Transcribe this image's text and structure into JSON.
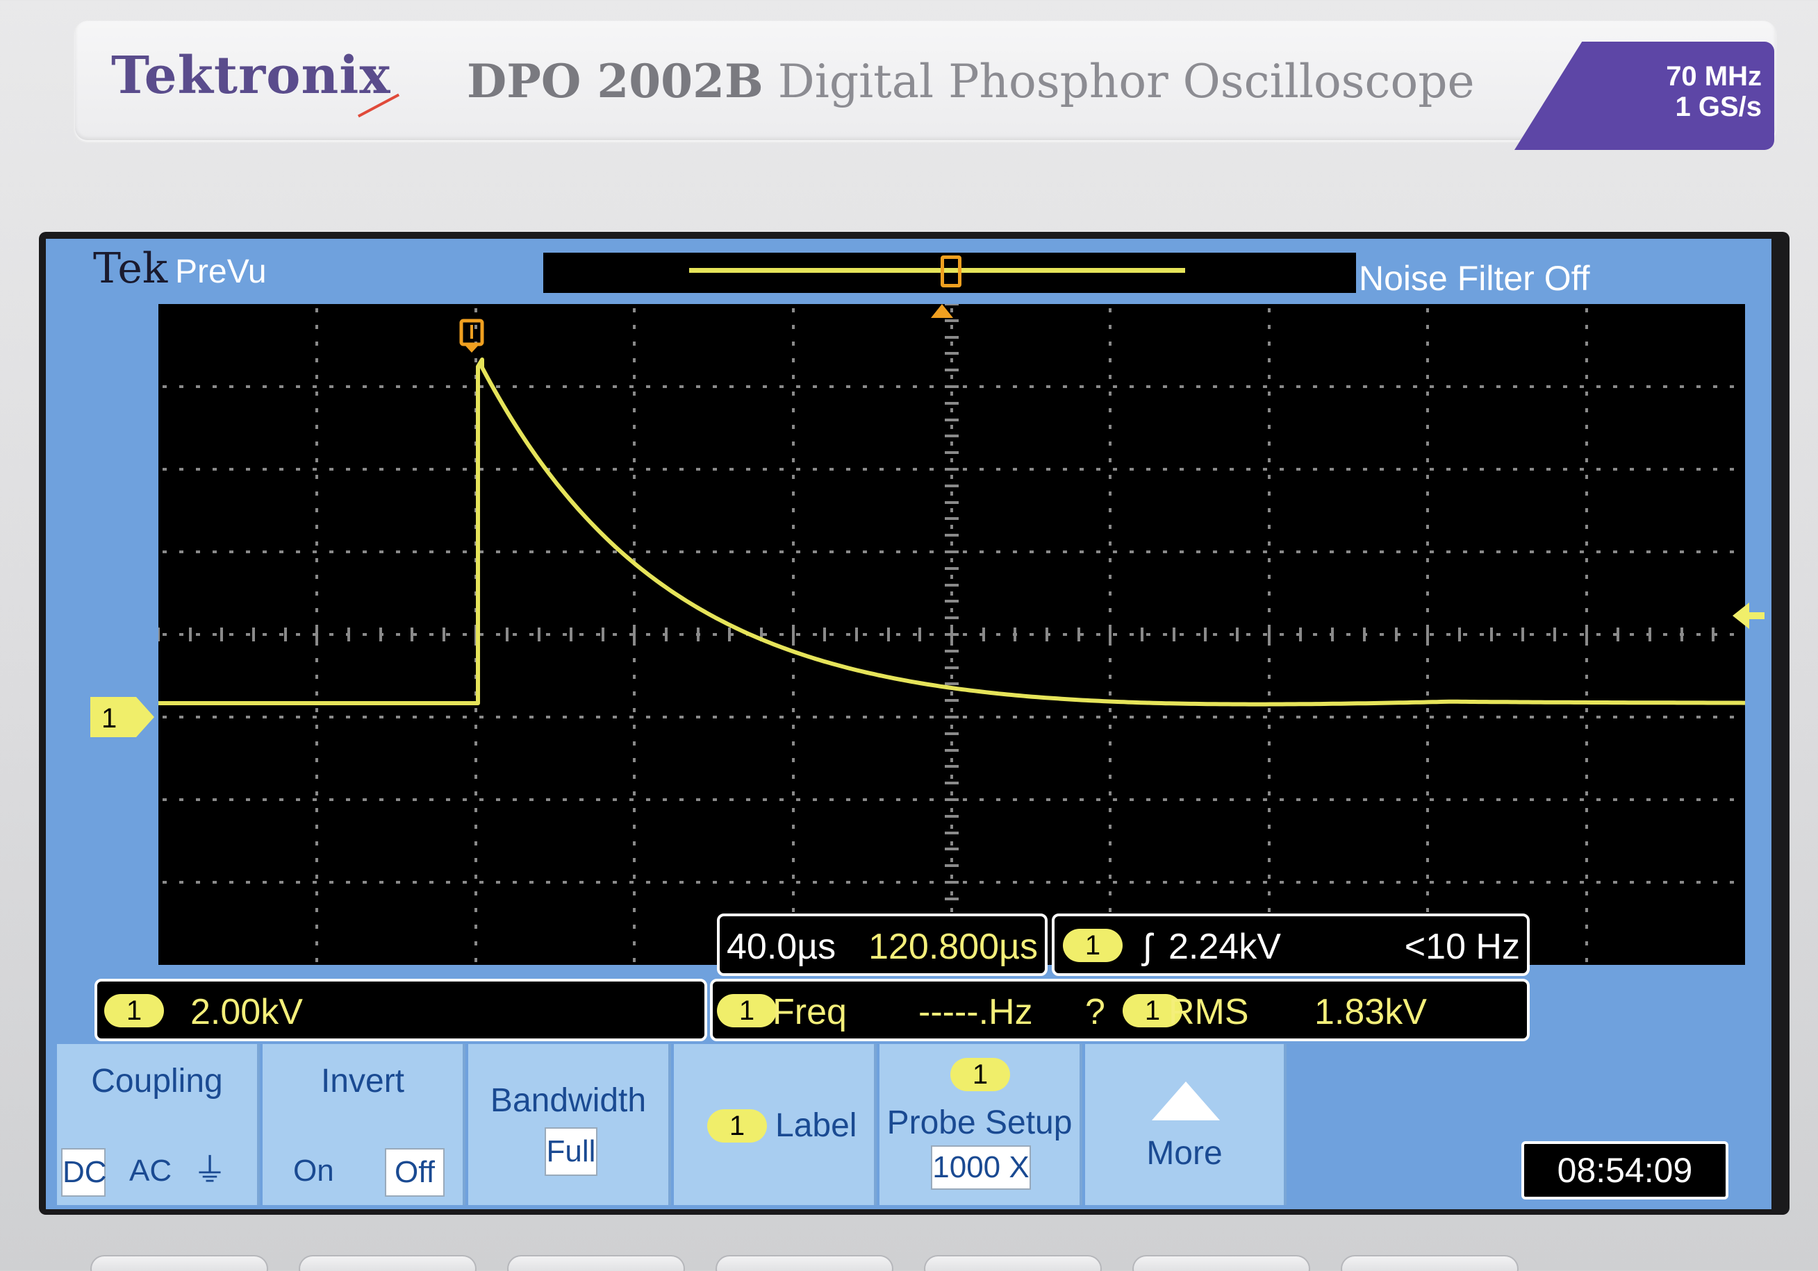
{
  "instrument": {
    "brand": "Tektronix",
    "model": "DPO 2002B",
    "description": "Digital Phosphor Oscilloscope",
    "bandwidth": "70 MHz",
    "sample_rate": "1 GS/s"
  },
  "screen": {
    "logo": "Tek",
    "mode": "PreVu",
    "noise_filter": "Noise Filter Off",
    "channel_marker": "1",
    "timebase": {
      "time_per_div": "40.0µs",
      "delay": "120.800µs"
    },
    "trigger": {
      "channel": "1",
      "slope_symbol": "ʃ",
      "level": "2.24kV",
      "freq": "<10 Hz"
    },
    "channel1": {
      "channel": "1",
      "scale": "2.00kV"
    },
    "measurements": [
      {
        "channel": "1",
        "name": "Freq",
        "value": "-----.Hz",
        "flag": "?"
      },
      {
        "channel": "1",
        "name": "RMS",
        "value": "1.83kV"
      }
    ],
    "clock": "08:54:09"
  },
  "menu": {
    "coupling": {
      "title": "Coupling",
      "options": [
        "DC",
        "AC",
        "⏚"
      ],
      "selected": "DC"
    },
    "invert": {
      "title": "Invert",
      "options": [
        "On",
        "Off"
      ],
      "selected": "Off"
    },
    "bandwidth": {
      "title": "Bandwidth",
      "value": "Full"
    },
    "label": {
      "channel": "1",
      "title": "Label"
    },
    "probe_setup": {
      "channel": "1",
      "title": "Probe Setup",
      "value": "1000 X"
    },
    "more": {
      "title": "More"
    }
  },
  "colors": {
    "trace": "#e6e45a",
    "screen_bg": "#6fa1dd",
    "trigger_marker": "#f0a020",
    "brand": "#5a4c8c",
    "badge": "#5d46a6"
  }
}
